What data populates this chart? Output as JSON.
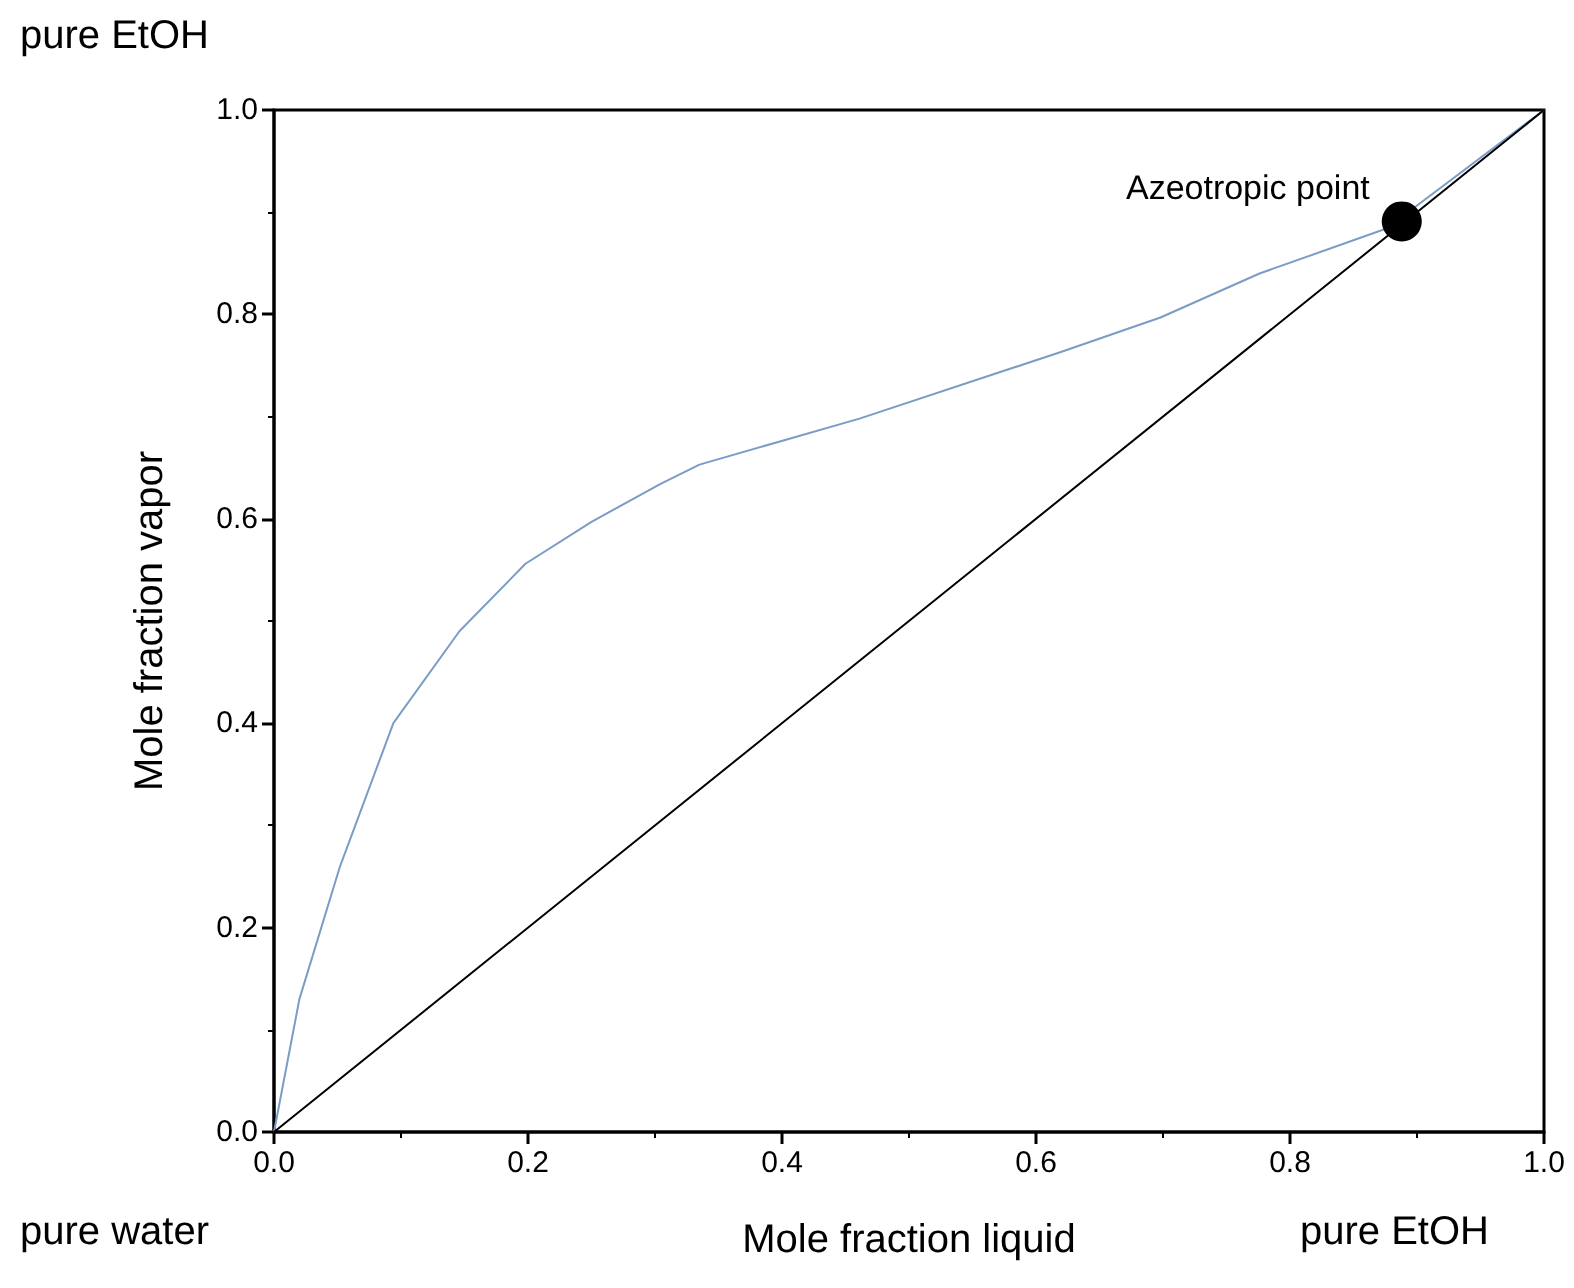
{
  "chart_data": {
    "type": "line",
    "xlabel": "Mole fraction liquid",
    "ylabel": "Mole fraction vapor",
    "x": [
      0,
      0.02,
      0.052,
      0.094,
      0.146,
      0.198,
      0.25,
      0.304,
      0.335,
      0.461,
      0.619,
      0.698,
      0.776,
      0.876,
      1.0
    ],
    "series": [
      {
        "color": "#7a9cc6",
        "values": [
          0,
          0.13,
          0.26,
          0.4,
          0.49,
          0.556,
          0.597,
          0.634,
          0.653,
          0.698,
          0.763,
          0.797,
          0.84,
          0.884,
          1.0
        ]
      },
      {
        "color": "#000000",
        "x": [
          0,
          1
        ],
        "values": [
          0,
          1
        ]
      },
      {
        "type": "scatter",
        "color": "#000000",
        "marker": "circle",
        "x": [
          0.888
        ],
        "values": [
          0.891
        ]
      }
    ],
    "xlim": [
      0,
      1
    ],
    "ylim": [
      0,
      1
    ],
    "xticks": [
      {
        "value": 0,
        "label": "0.0"
      },
      0.2,
      0.4,
      0.6,
      0.8,
      {
        "value": 1,
        "label": "1.0"
      }
    ],
    "yticks": [
      {
        "value": 0,
        "label": "0.0"
      },
      0.2,
      0.4,
      0.6,
      0.8,
      {
        "value": 1,
        "label": "1.0"
      }
    ],
    "annotations": [
      {
        "text": "Azeotropic point",
        "x": 0.888,
        "y": 0.891
      },
      "pure EtOH",
      "pure water",
      "pure EtOH"
    ],
    "line_style": "solid"
  }
}
